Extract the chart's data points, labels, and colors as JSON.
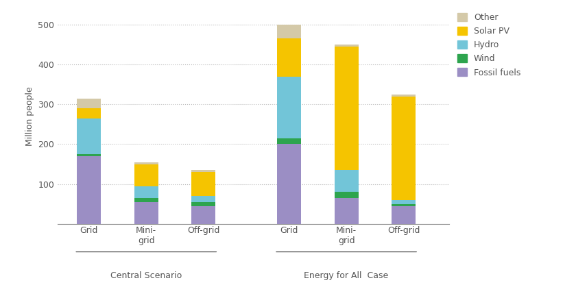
{
  "fossil_fuels": [
    170,
    55,
    45,
    200,
    65,
    45
  ],
  "wind": [
    5,
    10,
    10,
    15,
    15,
    5
  ],
  "hydro": [
    90,
    30,
    15,
    155,
    55,
    10
  ],
  "solar_pv": [
    25,
    55,
    60,
    95,
    310,
    260
  ],
  "other": [
    25,
    5,
    5,
    35,
    5,
    5
  ],
  "colors": {
    "fossil_fuels": "#9b8ec4",
    "wind": "#2da44e",
    "hydro": "#72c5d8",
    "solar_pv": "#f5c400",
    "other": "#d4c9a8"
  },
  "ylabel": "Million people",
  "ylim": [
    0,
    540
  ],
  "yticks": [
    100,
    200,
    300,
    400,
    500
  ],
  "bar_width": 0.42
}
